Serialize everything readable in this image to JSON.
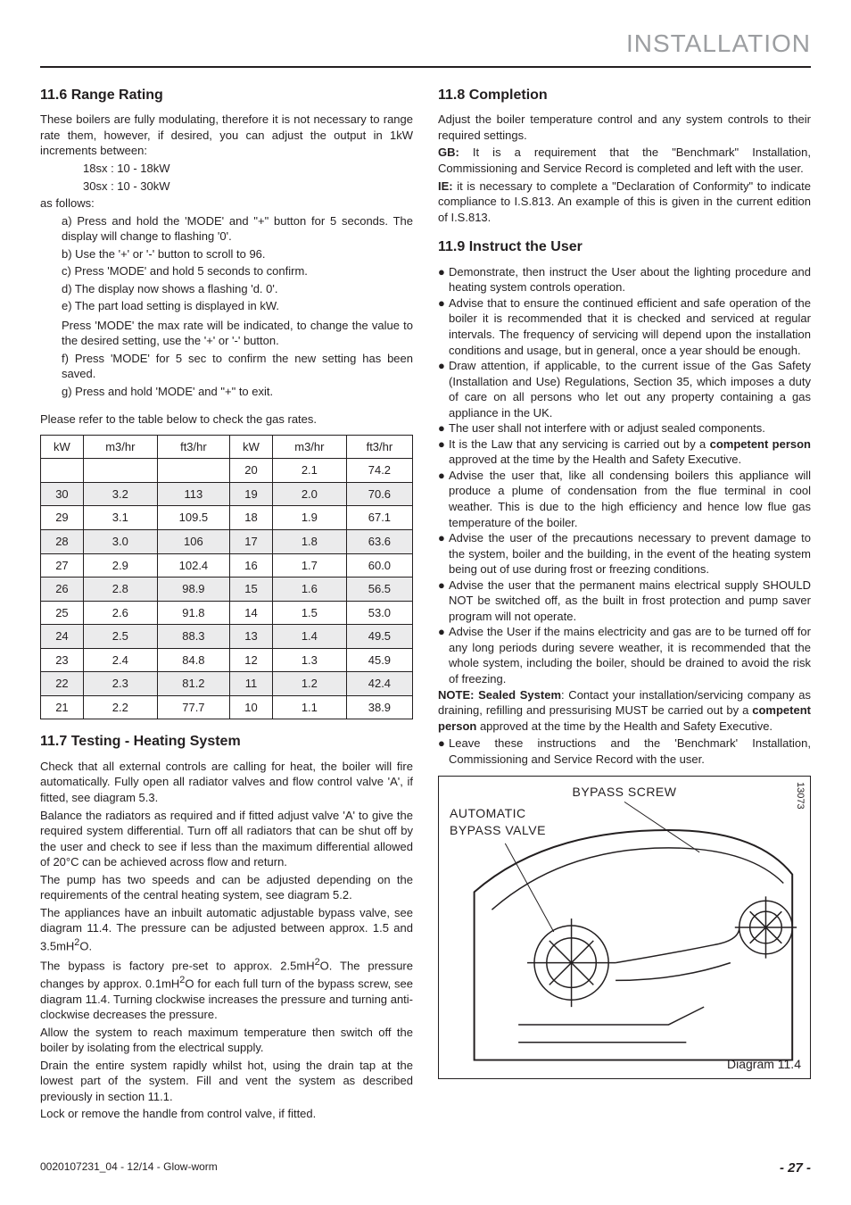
{
  "header": "INSTALLATION",
  "left": {
    "s116": {
      "title": "11.6 Range Rating",
      "intro": "These boilers are fully modulating, therefore it is not necessary to range rate them, however, if desired, you can adjust the output in 1kW increments between:",
      "range1": "18sx : 10 - 18kW",
      "range2": "30sx : 10 - 30kW",
      "asfollows": "as follows:",
      "a": "a)  Press and hold the 'MODE' and \"+\" button for 5 seconds.  The display will change to flashing '0'.",
      "b": "b)  Use the  '+'  or  '-'  button to scroll to 96.",
      "c": "c)  Press  'MODE'  and hold 5 seconds to confirm.",
      "d": "d)  The display now shows a flashing  'd. 0'.",
      "e": "e)  The part load setting is displayed in kW.",
      "e2": "Press  'MODE'  the max rate will be indicated, to change the value to the desired setting, use the  '+'  or  '-'  button.",
      "f": "f)   Press  'MODE' for 5 sec to confirm the new setting has been saved.",
      "g": "g)  Press and hold  'MODE' and \"+\"  to exit.",
      "tableintro": "Please refer to the table below to check the gas  rates."
    },
    "table": {
      "headers": [
        "kW",
        "m3/hr",
        "ft3/hr",
        "kW",
        "m3/hr",
        "ft3/hr"
      ],
      "rows": [
        [
          "",
          "",
          "",
          "20",
          "2.1",
          "74.2"
        ],
        [
          "30",
          "3.2",
          "113",
          "19",
          "2.0",
          "70.6"
        ],
        [
          "29",
          "3.1",
          "109.5",
          "18",
          "1.9",
          "67.1"
        ],
        [
          "28",
          "3.0",
          "106",
          "17",
          "1.8",
          "63.6"
        ],
        [
          "27",
          "2.9",
          "102.4",
          "16",
          "1.7",
          "60.0"
        ],
        [
          "26",
          "2.8",
          "98.9",
          "15",
          "1.6",
          "56.5"
        ],
        [
          "25",
          "2.6",
          "91.8",
          "14",
          "1.5",
          "53.0"
        ],
        [
          "24",
          "2.5",
          "88.3",
          "13",
          "1.4",
          "49.5"
        ],
        [
          "23",
          "2.4",
          "84.8",
          "12",
          "1.3",
          "45.9"
        ],
        [
          "22",
          "2.3",
          "81.2",
          "11",
          "1.2",
          "42.4"
        ],
        [
          "21",
          "2.2",
          "77.7",
          "10",
          "1.1",
          "38.9"
        ]
      ]
    },
    "s117": {
      "title": "11.7 Testing - Heating System",
      "p1": "Check that all external controls are calling for heat, the boiler will fire automatically.  Fully open all radiator valves and flow control valve 'A', if fitted, see diagram 5.3.",
      "p2": "Balance the radiators as required and if fitted adjust valve 'A' to give the required system differential.  Turn off all radiators that can be shut off by the user and check to see if less than the maximum differential allowed of 20°C can be achieved across flow and return.",
      "p3": "The pump has two speeds and can be adjusted depending on the requirements of the central heating system, see diagram 5.2.",
      "p4a": "The appliances have an inbuilt automatic adjustable bypass valve, see diagram 11.4. The pressure can be adjusted between approx. 1.5 and 3.5mH",
      "p4b": "O.",
      "p5a": "The bypass is factory pre-set to approx. 2.5mH",
      "p5b": "O. The pressure changes by approx. 0.1mH",
      "p5c": "O for each full turn of the bypass screw, see diagram 11.4. Turning clockwise increases the pressure and turning anti-clockwise decreases the pressure.",
      "p6": "Allow the system to reach maximum temperature then switch off the boiler by isolating from the electrical supply.",
      "p7": "Drain the entire system rapidly whilst hot, using the drain tap at the lowest part of the system.  Fill and vent the system as described previously in section 11.1.",
      "p8": "Lock or remove the handle from control valve, if fitted."
    }
  },
  "right": {
    "s118": {
      "title": "11.8 Completion",
      "p1": "Adjust the boiler temperature control and any system controls to their required settings.",
      "p2a": "GB:",
      "p2b": " It is a requirement that the \"Benchmark\" Installation, Commissioning and Service Record is completed and left with the user.",
      "p3a": "IE:",
      "p3b": " it is necessary to complete a \"Declaration of Conformity\" to indicate compliance to I.S.813. An example of this is given in the current edition of I.S.813."
    },
    "s119": {
      "title": "11.9 Instruct the User",
      "b1": "Demonstrate, then instruct the User about the lighting procedure and heating system controls operation.",
      "b2": "Advise that to ensure the continued efficient and safe operation of the boiler it is recommended that it is checked and serviced at regular intervals. The frequency of servicing will depend upon the installation conditions and usage, but in general, once a year should be enough.",
      "b3": "Draw attention, if applicable, to the current issue of the Gas Safety (Installation and Use) Regulations, Section 35, which imposes a duty of care on all persons who let out any property containing a gas appliance in the UK.",
      "b4": "The user shall not interfere with or adjust sealed components.",
      "b5a": "It is the Law that any servicing is carried out by a ",
      "b5b": "competent person",
      "b5c": " approved at the time by the Health and Safety Executive.",
      "b6": "Advise the user that, like all condensing boilers this appliance will produce a plume of condensation from the flue terminal in cool weather. This is due to the high efficiency and hence low flue gas temperature of the boiler.",
      "b7": "Advise the user of the precautions necessary to prevent damage to the system, boiler and the building, in the event of the heating system being out of use during frost or freezing conditions.",
      "b8": "Advise the user that the permanent mains electrical supply SHOULD NOT be switched off, as the built in frost protection and pump saver program will not operate.",
      "b9": "Advise the User if the mains electricity and gas are to be turned off for any long periods during severe weather, it is recommended that the whole system, including the  boiler, should be drained to avoid the risk of freezing.",
      "n1a": "NOTE: Sealed System",
      "n1b": ": Contact your installation/servicing company as draining, refilling and pressurising MUST be carried out by a ",
      "n1c": "competent person",
      "n1d": " approved at the time by the Health and Safety Executive.",
      "b10": "Leave these instructions and the 'Benchmark' Installation, Commissioning and Service Record with the user."
    },
    "figure": {
      "top": "BYPASS SCREW",
      "left1": "AUTOMATIC",
      "left2": "BYPASS VALVE",
      "side": "13073",
      "diagram": "Diagram 11.4"
    }
  },
  "footer": {
    "left": "0020107231_04 - 12/14 - Glow-worm",
    "right": "- 27 -"
  }
}
